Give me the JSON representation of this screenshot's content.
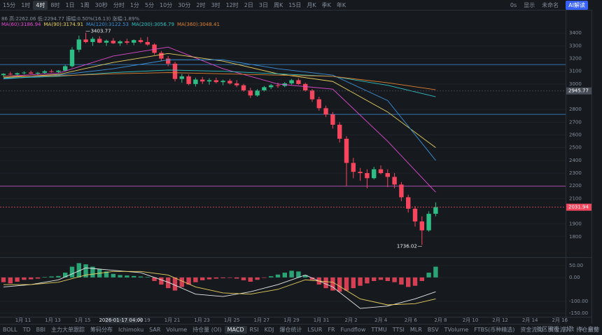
{
  "toolbar": {
    "intervals": [
      "15分",
      "1时",
      "4时",
      "8时",
      "1日",
      "1周",
      "30秒",
      "分时",
      "1分",
      "5分",
      "10分",
      "30分",
      "2时",
      "3时",
      "12时",
      "2日",
      "3日",
      "周K",
      "15日",
      "月K",
      "季K",
      "年K"
    ],
    "active": "4时",
    "right": [
      "0s",
      "显示",
      "未命名",
      "AI解读"
    ]
  },
  "info": {
    "line1": "86 高:2262.06 低:2294.77 振幅:0.50%(16.13) 涨幅:1.89%"
  },
  "chart_data": [
    {
      "type": "candlestick",
      "candles": [
        [
          3070,
          3085,
          3055,
          3080
        ],
        [
          3080,
          3095,
          3070,
          3075
        ],
        [
          3075,
          3090,
          3060,
          3085
        ],
        [
          3085,
          3100,
          3075,
          3090
        ],
        [
          3090,
          3105,
          3080,
          3082
        ],
        [
          3082,
          3095,
          3070,
          3088
        ],
        [
          3088,
          3110,
          3080,
          3100
        ],
        [
          3100,
          3115,
          3090,
          3095
        ],
        [
          3095,
          3110,
          3085,
          3105
        ],
        [
          3105,
          3150,
          3100,
          3140
        ],
        [
          3140,
          3290,
          3130,
          3270
        ],
        [
          3270,
          3380,
          3250,
          3350
        ],
        [
          3350,
          3403.77,
          3320,
          3330
        ],
        [
          3330,
          3370,
          3300,
          3355
        ],
        [
          3355,
          3375,
          3320,
          3325
        ],
        [
          3325,
          3350,
          3300,
          3340
        ],
        [
          3340,
          3360,
          3315,
          3320
        ],
        [
          3320,
          3345,
          3300,
          3335
        ],
        [
          3335,
          3355,
          3310,
          3325
        ],
        [
          3325,
          3350,
          3305,
          3345
        ],
        [
          3345,
          3365,
          3320,
          3330
        ],
        [
          3330,
          3370,
          3300,
          3310
        ],
        [
          3310,
          3320,
          3230,
          3245
        ],
        [
          3245,
          3260,
          3180,
          3200
        ],
        [
          3200,
          3220,
          3140,
          3160
        ],
        [
          3160,
          3175,
          3020,
          3040
        ],
        [
          3040,
          3080,
          3010,
          3060
        ],
        [
          3060,
          3075,
          2990,
          3000
        ],
        [
          3000,
          3050,
          2980,
          3035
        ],
        [
          3035,
          3055,
          3000,
          3020
        ],
        [
          3020,
          3045,
          2995,
          3030
        ],
        [
          3030,
          3050,
          3005,
          3015
        ],
        [
          3015,
          3035,
          2990,
          3025
        ],
        [
          3025,
          3040,
          2995,
          3005
        ],
        [
          3005,
          3030,
          2975,
          2990
        ],
        [
          2990,
          3000,
          2940,
          2950
        ],
        [
          2950,
          2970,
          2890,
          2910
        ],
        [
          2910,
          2960,
          2900,
          2950
        ],
        [
          2950,
          2985,
          2940,
          2975
        ],
        [
          2975,
          3000,
          2960,
          2990
        ],
        [
          2990,
          3010,
          2970,
          2985
        ],
        [
          2985,
          3015,
          2975,
          3005
        ],
        [
          3005,
          3040,
          2995,
          3030
        ],
        [
          3030,
          3045,
          2995,
          3000
        ],
        [
          3000,
          3010,
          2940,
          2950
        ],
        [
          2950,
          2960,
          2860,
          2880
        ],
        [
          2880,
          2900,
          2790,
          2810
        ],
        [
          2810,
          2830,
          2740,
          2760
        ],
        [
          2760,
          2780,
          2650,
          2680
        ],
        [
          2680,
          2700,
          2540,
          2570
        ],
        [
          2570,
          2590,
          2200,
          2380
        ],
        [
          2380,
          2420,
          2260,
          2310
        ],
        [
          2310,
          2340,
          2240,
          2300
        ],
        [
          2300,
          2330,
          2180,
          2260
        ],
        [
          2260,
          2350,
          2250,
          2330
        ],
        [
          2330,
          2360,
          2290,
          2300
        ],
        [
          2300,
          2330,
          2190,
          2270
        ],
        [
          2270,
          2300,
          2180,
          2210
        ],
        [
          2210,
          2230,
          2080,
          2110
        ],
        [
          2110,
          2130,
          1990,
          2020
        ],
        [
          2020,
          2040,
          1880,
          1920
        ],
        [
          1920,
          1960,
          1736.02,
          1850
        ],
        [
          1850,
          2000,
          1840,
          1980
        ],
        [
          1980,
          2070,
          1960,
          2031.94
        ]
      ],
      "up_color": "#2ebd85",
      "down_color": "#f6465d",
      "series": [
        {
          "name": "MA(60):3186.94",
          "color": "#e04ad0",
          "x": [
            0,
            8,
            16,
            24,
            32,
            40,
            48,
            56,
            63
          ],
          "values": [
            3060,
            3085,
            3220,
            3290,
            3120,
            3000,
            2960,
            2550,
            2150
          ]
        },
        {
          "name": "MA(90):3174.91",
          "color": "#e8d060",
          "x": [
            0,
            8,
            16,
            24,
            32,
            40,
            48,
            56,
            63
          ],
          "values": [
            3050,
            3075,
            3170,
            3240,
            3180,
            3080,
            3020,
            2780,
            2500
          ]
        },
        {
          "name": "MA(120):3122.53",
          "color": "#3a8fd9",
          "x": [
            0,
            8,
            16,
            24,
            32,
            40,
            48,
            56,
            63
          ],
          "values": [
            3040,
            3070,
            3120,
            3190,
            3190,
            3120,
            3070,
            2870,
            2400
          ]
        },
        {
          "name": "MA(200):3056.79",
          "color": "#30c0c0",
          "x": [
            0,
            8,
            16,
            24,
            32,
            40,
            48,
            56,
            63
          ],
          "values": [
            3045,
            3060,
            3090,
            3110,
            3100,
            3080,
            3060,
            2990,
            2900
          ]
        },
        {
          "name": "MA(360):3048.41",
          "color": "#e08030",
          "x": [
            0,
            8,
            16,
            24,
            32,
            40,
            48,
            56,
            63
          ],
          "values": [
            3060,
            3065,
            3080,
            3090,
            3080,
            3070,
            3060,
            3010,
            2955
          ]
        }
      ],
      "ylim": [
        1650,
        3495
      ],
      "yticks": [
        1800,
        1900,
        2100,
        2200,
        2300,
        2400,
        2500,
        2600,
        2700,
        2800,
        3000,
        3100,
        3200,
        3300,
        3400
      ],
      "hlines": [
        {
          "value": 3153,
          "color": "#3a8fd9"
        },
        {
          "value": 2762,
          "color": "#3a8fd9"
        },
        {
          "value": 2197,
          "color": "#c050c0"
        }
      ],
      "price_tags": [
        2945.77,
        2031.94
      ],
      "x_labels": [
        "1月 11",
        "1月 13",
        "1月 15",
        "1月 19",
        "1月 21",
        "1月 23",
        "1月 25",
        "1月 27",
        "1月 29",
        "1月 31",
        "2月 2",
        "2月 4",
        "2月 6",
        "2月 8",
        "2月 10",
        "2月 12",
        "2月 14",
        "2月 16"
      ],
      "crosshair_time": "2026-01-17 04:00"
    },
    {
      "type": "macd",
      "values": [
        -20,
        -25,
        -18,
        -10,
        -8,
        -5,
        2,
        4,
        6,
        20,
        45,
        60,
        55,
        45,
        35,
        25,
        15,
        10,
        8,
        6,
        4,
        2,
        -15,
        -30,
        -45,
        -55,
        -40,
        -30,
        -20,
        -12,
        -8,
        -5,
        -3,
        -2,
        -5,
        -12,
        -18,
        -10,
        -2,
        5,
        12,
        20,
        28,
        25,
        10,
        -10,
        -30,
        -45,
        -55,
        -60,
        -55,
        -45,
        -35,
        -25,
        -15,
        -10,
        -15,
        -20,
        -30,
        -40,
        -35,
        -15,
        20,
        45
      ],
      "series": [
        {
          "color": "#e8e8e8",
          "x": [
            0,
            4,
            8,
            12,
            16,
            20,
            24,
            28,
            32,
            36,
            40,
            44,
            48,
            52,
            56,
            60,
            63
          ],
          "values": [
            -40,
            -30,
            -10,
            40,
            30,
            20,
            -20,
            -70,
            -80,
            -60,
            -30,
            10,
            -40,
            -130,
            -120,
            -90,
            -60
          ]
        },
        {
          "color": "#e8d060",
          "x": [
            0,
            4,
            8,
            12,
            16,
            20,
            24,
            28,
            32,
            36,
            40,
            44,
            48,
            52,
            56,
            60,
            63
          ],
          "values": [
            -30,
            -30,
            -20,
            10,
            25,
            25,
            10,
            -40,
            -65,
            -70,
            -50,
            -10,
            -20,
            -90,
            -115,
            -110,
            -90
          ]
        }
      ],
      "ylim": [
        -165,
        76
      ],
      "yticks": [
        {
          "value": 50,
          "label": "50.00"
        },
        {
          "value": 0,
          "label": "0.00"
        },
        {
          "value": -100,
          "label": "-100.00"
        },
        {
          "value": -150,
          "label": "-150.00"
        }
      ]
    }
  ],
  "indicator_tabs": {
    "items": [
      "BOLL",
      "TD",
      "BBI",
      "主力大单跟踪",
      "筹码分布",
      "Ichimoku",
      "SAR",
      "Volume",
      "持仓量 (OI)",
      "MACD",
      "RSI",
      "KDJ",
      "爆仓统计",
      "LSUR",
      "FR",
      "Fundflow",
      "TTMU",
      "TTSI",
      "MLR",
      "BSV",
      "TVolume",
      "FTBS(币种精选)",
      "资金流向",
      "资金流入",
      "持仓量变",
      "买卖热度"
    ],
    "active": "MACD",
    "right": [
      "社区围观",
      "对数",
      "%",
      "自动"
    ]
  }
}
